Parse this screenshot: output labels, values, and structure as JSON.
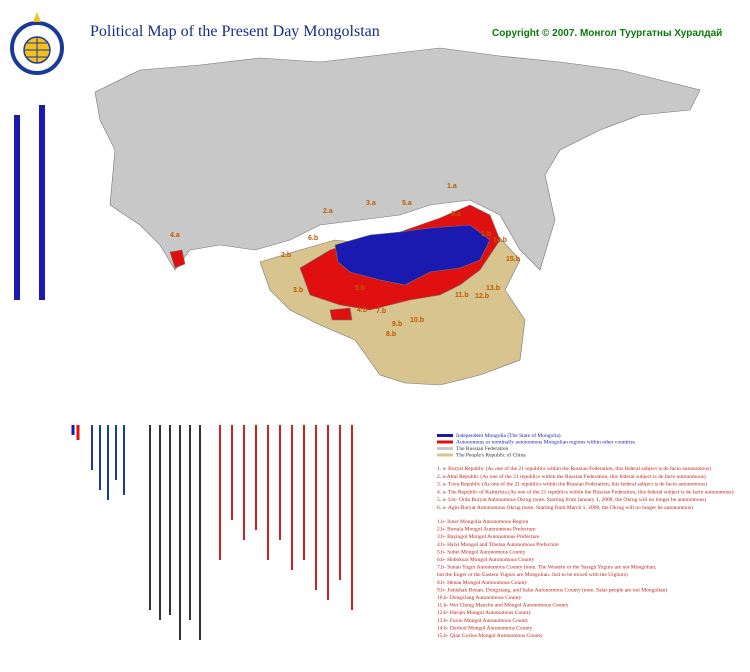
{
  "header": {
    "title": "Political Map of the Present Day Mongolstan",
    "copyright": "Copyright © 2007. Монгол Туургатны Хуралдай"
  },
  "map_labels": [
    "1.a",
    "2.a",
    "3.a",
    "4.a",
    "5.a",
    "6.a",
    "1.b",
    "2.b",
    "3.b",
    "4.b",
    "5.b",
    "6.b",
    "7.b",
    "8.b",
    "9.b",
    "10.b",
    "11.b",
    "12.b",
    "13.b",
    "14.b",
    "15.b"
  ],
  "legend": [
    {
      "label": "Independent Mongolia (The State of Mongolia)",
      "color": "#1a1ab0"
    },
    {
      "label": "Autonomous or nominally autonomous Mongolian regions within other countries",
      "color": "#e01010"
    },
    {
      "label": "The Russian Federation",
      "color": "#c8c8c8"
    },
    {
      "label": "The People's Republic of China",
      "color": "#d8c48e"
    }
  ],
  "russia_list": [
    "1. a- Buryat Republic (As one of the 21 republics within the Russian Federation, this federal subject is de facto autonomous)",
    "2. a-Altai Republic (As one of the 21 republics within the Russian Federation, this federal subject is de facto autonomous)",
    "3. a- Tuva Republic (As one of the 21 republics within the Russian Federation, this federal subject is de facto autonomous)",
    "4. a- The Republic of Kalmykia (As one of the 21 republics within the Russian Federation, this federal subject is de facto autonomous)",
    "5. a- Ust- Orda Buryat Autonomous Okrug (note. Starting from January 1, 2008, the Okrug will no longer be autonomous)",
    "6. a- Agin-Buryat Autonomous Okrug (note. Starting from March 1, 2008, the Okrug will no longer be autonomous)"
  ],
  "china_list": [
    "1.b- Inner Mongolia Autonomous Region",
    "2.b- Bortala Mongol Autonomous Prefecture",
    "3.b- Bayingol Mongol Autonomous Prefecture",
    "4.b- Haixi Mongol and Tibetan Autonomous Prefecture",
    "5.b- Subei Mongol Autonomous County",
    "6.b- Hoboksar Mongol Autonomous County",
    "7.b- Sunan Yugur Autonomous County (note. The Western or the Saragh Yugurs are not Mongolian;",
    "but the Enger or the Eastern Yugurs are Mongolian. Just to be mixed with the Uighurs)",
    "8.b- Henan Mongol Autonomous County",
    "9.b- Jishishan Bonan, Dongxiang, and Salar Autonomous County (note. Salar people are not Mongolian)",
    "10.b- Dongxiang Autonomous County",
    "11.b- Wei Chang Manchu and Mongol Autonomous County",
    "12.b- Harqin Mongol Autonomous County",
    "13.b- Fuxin Mongol Autonomous County",
    "14.b- Dorbod Mongol Autonomous County",
    "15.b- Qian Gorlos Mongol Autonomous County"
  ]
}
